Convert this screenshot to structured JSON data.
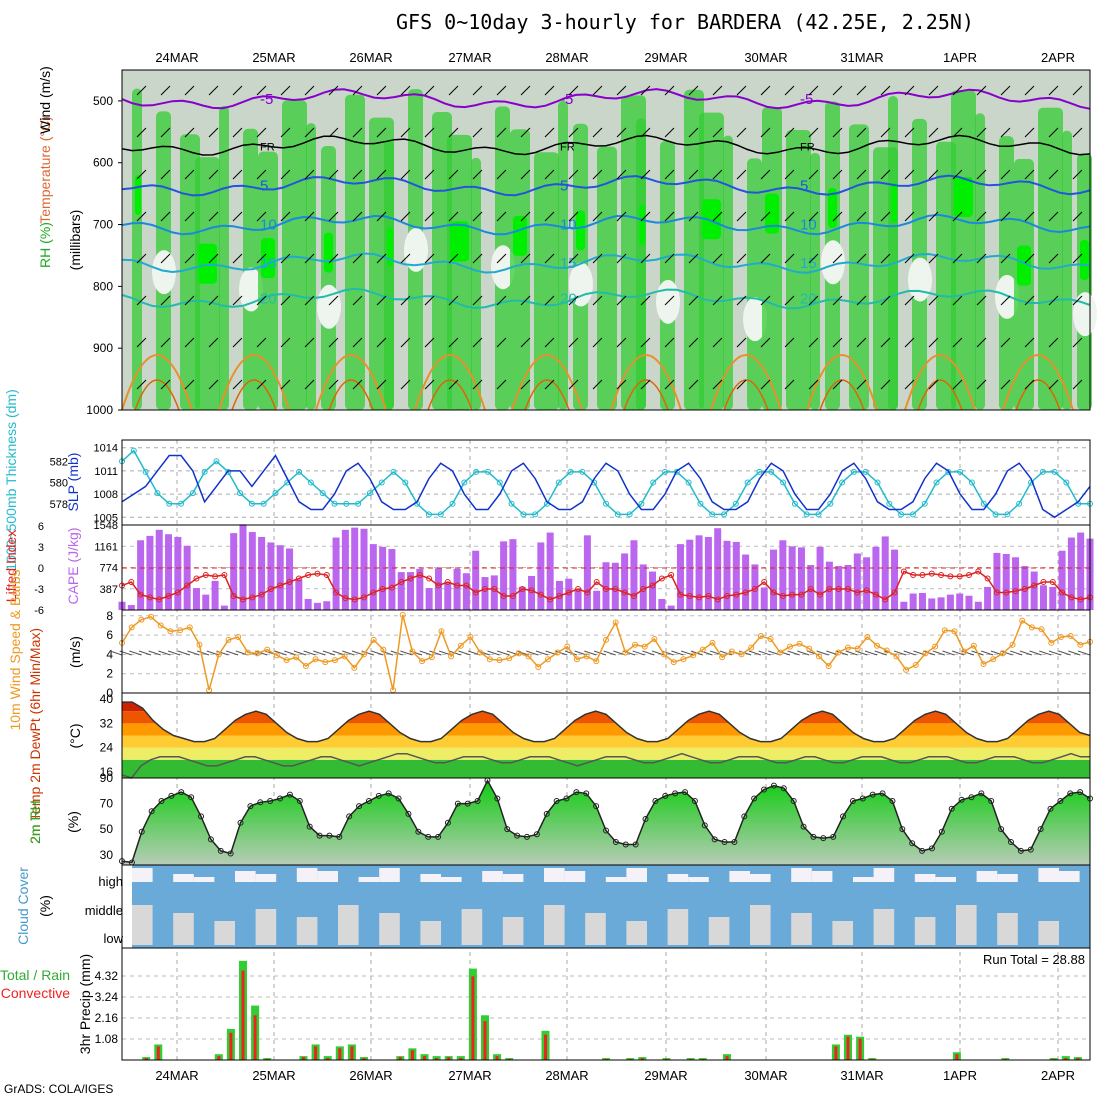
{
  "title": "GFS 0~10day 3-hourly for BARDERA (42.25E, 2.25N)",
  "credit": "GrADS: COLA/IGES",
  "dates": [
    "24MAR",
    "25MAR",
    "26MAR",
    "27MAR",
    "28MAR",
    "29MAR",
    "30MAR",
    "31MAR",
    "1APR",
    "2APR"
  ],
  "panel_labels": {
    "upper_rh": "RH (%)",
    "upper_temp": "Temperature (°C)",
    "upper_wind": "Wind (m/s)",
    "upper_units": "(millibars)",
    "thickness": "1000~500mb Thickness (dm)",
    "slp": "SLP (mb)",
    "lifted": "Lifted Index",
    "cape": "CAPE (J/kg)",
    "wind10": "10m Wind Speed & Barbs",
    "wind10_units": "(m/s)",
    "temp2m": "2m Temp 2m DewPt (6hr Min/Max)",
    "temp2m_units": "(°C)",
    "rh2m": "2m RH",
    "rh2m_units": "(%)",
    "cloud": "Cloud Cover",
    "cloud_units": "(%)",
    "precip_total": "Total / Rain",
    "precip_conv": "Convective",
    "precip": "3hr Precip (mm)",
    "run_total": "Run Total = 28.88"
  },
  "colors": {
    "rh_green": "#33cc33",
    "rh_bright": "#00ee00",
    "temp_purple": "#8800cc",
    "temp_blue": "#2255dd",
    "slp_line": "#1133cc",
    "thick_line": "#22bbcc",
    "cape_bar": "#bb66ee",
    "lifted_line": "#dd2222",
    "wind_line": "#ee9922",
    "cloud_blue": "#6aaad8",
    "precip_green": "#33cc33",
    "precip_red": "#ee2222"
  },
  "chart_data": [
    {
      "type": "heatmap",
      "panel": "upper-air",
      "ylabel": "millibars",
      "yticks": [
        500,
        600,
        700,
        800,
        900,
        1000
      ],
      "ylim": [
        450,
        1000
      ],
      "isotherm_labels": [
        "-5",
        "FR",
        "5",
        "10",
        "15",
        "20"
      ],
      "isotherm_levels_mb": [
        {
          "label": "-5",
          "mb": 497
        },
        {
          "label": "FR",
          "mb": 572
        },
        {
          "label": "5",
          "mb": 637
        },
        {
          "label": "10",
          "mb": 700
        },
        {
          "label": "15",
          "mb": 762
        },
        {
          "label": "20",
          "mb": 820
        }
      ]
    },
    {
      "type": "line",
      "panel": "slp-thickness",
      "series": [
        {
          "name": "SLP (mb)",
          "axis": "right-label",
          "yticks": [
            1005,
            1008,
            1011,
            1014
          ],
          "values": [
            1007,
            1008,
            1009,
            1011,
            1013,
            1013,
            1011,
            1007,
            1009,
            1011,
            1011,
            1009,
            1011,
            1013,
            1010,
            1007,
            1006,
            1006,
            1008,
            1011,
            1012,
            1010,
            1007,
            1006,
            1006,
            1007,
            1010,
            1012,
            1011,
            1008,
            1006,
            1006,
            1008,
            1011,
            1012,
            1010,
            1007,
            1006,
            1006,
            1007,
            1010,
            1012,
            1011,
            1008,
            1006,
            1006,
            1008,
            1011,
            1012,
            1010,
            1007,
            1006,
            1006,
            1007,
            1010,
            1012,
            1011,
            1008,
            1006,
            1006,
            1008,
            1011,
            1012,
            1010,
            1007,
            1006,
            1006,
            1007,
            1010,
            1012,
            1011,
            1008,
            1006,
            1006,
            1008,
            1011,
            1012,
            1010,
            1006,
            1005,
            1006,
            1007,
            1009
          ]
        },
        {
          "name": "1000~500mb Thickness (dm)",
          "axis": "left",
          "yticks": [
            578,
            580,
            582
          ],
          "values": [
            582,
            583,
            581,
            579,
            578,
            578,
            579,
            581,
            582,
            581,
            579,
            578,
            578,
            579,
            580,
            581,
            580,
            579,
            578,
            578,
            578,
            579,
            580,
            581,
            580,
            578,
            577,
            577,
            578,
            580,
            581,
            581,
            580,
            578,
            577,
            577,
            578,
            580,
            581,
            581,
            580,
            578,
            577,
            577,
            578,
            580,
            581,
            581,
            580,
            578,
            577,
            577,
            578,
            580,
            581,
            581,
            580,
            578,
            577,
            577,
            578,
            580,
            581,
            581,
            580,
            578,
            577,
            577,
            578,
            580,
            581,
            581,
            580,
            578,
            577,
            577,
            578,
            580,
            581,
            581,
            580,
            578,
            578
          ]
        }
      ]
    },
    {
      "type": "bar",
      "panel": "cape-lifted",
      "cape_yticks": [
        387,
        774,
        1161,
        1548
      ],
      "lifted_yticks": [
        -6,
        -3,
        0,
        3,
        6
      ],
      "cape": [
        150,
        90,
        1270,
        1350,
        1460,
        1380,
        1330,
        1170,
        400,
        280,
        530,
        80,
        1400,
        1560,
        1420,
        1330,
        1230,
        1180,
        1120,
        560,
        200,
        130,
        160,
        1320,
        1460,
        1500,
        1480,
        1200,
        1150,
        1110,
        690,
        690,
        750,
        400,
        760,
        510,
        750,
        670,
        1080,
        600,
        630,
        1250,
        1290,
        420,
        620,
        1230,
        1410,
        530,
        570,
        390,
        1360,
        350,
        870,
        860,
        1030,
        1270,
        830,
        700,
        200,
        80,
        1200,
        1280,
        1360,
        1330,
        1490,
        1260,
        1240,
        1010,
        830,
        410,
        1100,
        1270,
        1160,
        1140,
        820,
        1150,
        880,
        800,
        820,
        1030,
        960,
        1150,
        1340,
        1100,
        150,
        300,
        310,
        210,
        230,
        280,
        300,
        260,
        150,
        420,
        1040,
        1020,
        960,
        800,
        700,
        450,
        420,
        1080,
        1320,
        1410,
        1300
      ],
      "lifted": [
        -2.5,
        -2.0,
        -3.8,
        -4.2,
        -4.5,
        -4.0,
        -3.5,
        -2.5,
        -1.5,
        -1.0,
        -1.2,
        -1.0,
        -4.0,
        -4.5,
        -4.2,
        -3.8,
        -3.0,
        -2.5,
        -2.0,
        -1.5,
        -1.0,
        -0.8,
        -1.0,
        -3.5,
        -4.3,
        -4.5,
        -4.2,
        -3.5,
        -3.0,
        -2.8,
        -2.0,
        -1.5,
        -1.0,
        -1.5,
        -2.5,
        -2.0,
        -2.5,
        -2.5,
        -3.5,
        -3.0,
        -3.0,
        -4.0,
        -4.0,
        -3.0,
        -3.2,
        -3.8,
        -4.5,
        -4.0,
        -3.5,
        -3.0,
        -3.5,
        -2.0,
        -3.0,
        -3.0,
        -3.5,
        -4.0,
        -3.0,
        -2.5,
        -1.5,
        -1.0,
        -3.8,
        -4.0,
        -4.2,
        -4.0,
        -4.5,
        -4.0,
        -3.8,
        -3.5,
        -3.0,
        -2.0,
        -3.5,
        -4.0,
        -3.8,
        -3.8,
        -3.0,
        -3.8,
        -3.0,
        -3.0,
        -3.0,
        -3.5,
        -3.2,
        -3.8,
        -4.5,
        -3.5,
        -0.5,
        -1.0,
        -1.0,
        -0.8,
        -1.0,
        -1.2,
        -1.2,
        -1.0,
        -0.5,
        -1.5,
        -3.5,
        -3.5,
        -3.3,
        -3.0,
        -2.5,
        -2.0,
        -2.0,
        -3.5,
        -4.2,
        -4.5,
        -4.2
      ]
    },
    {
      "type": "line",
      "panel": "wind10m",
      "yticks": [
        0,
        2,
        4,
        6,
        8
      ],
      "ylim": [
        0,
        8
      ],
      "values": [
        5.2,
        6.8,
        7.6,
        7.9,
        7.0,
        6.4,
        6.5,
        6.8,
        5.0,
        0.3,
        4.0,
        5.5,
        5.8,
        4.2,
        4.1,
        4.5,
        3.9,
        3.4,
        3.7,
        2.8,
        3.5,
        3.2,
        3.4,
        3.8,
        2.6,
        4.0,
        5.5,
        4.5,
        0.3,
        8.1,
        4.3,
        3.3,
        3.7,
        6.4,
        3.8,
        4.9,
        5.8,
        4.2,
        3.5,
        3.4,
        3.6,
        4.1,
        3.8,
        2.7,
        3.5,
        4.2,
        4.8,
        3.5,
        3.8,
        3.3,
        5.5,
        7.3,
        4.2,
        5.0,
        4.8,
        5.6,
        4.0,
        3.2,
        3.5,
        3.9,
        4.5,
        5.2,
        3.7,
        4.3,
        4.0,
        4.7,
        5.9,
        5.6,
        4.2,
        4.8,
        5.1,
        4.6,
        3.8,
        2.8,
        4.2,
        4.7,
        4.6,
        5.8,
        4.9,
        4.4,
        3.8,
        2.4,
        2.9,
        4.1,
        4.8,
        6.5,
        6.4,
        4.3,
        4.9,
        3.0,
        3.5,
        4.1,
        5.0,
        7.5,
        6.8,
        6.6,
        5.2,
        5.8,
        5.9,
        5.0,
        5.3
      ]
    },
    {
      "type": "area",
      "panel": "temp2m",
      "yticks": [
        16,
        24,
        32,
        40
      ],
      "ylim": [
        14,
        42
      ],
      "temp": [
        39,
        39,
        37,
        33,
        30,
        28,
        27,
        26,
        26,
        27,
        30,
        33,
        35,
        36,
        35,
        32,
        29,
        27,
        26,
        26,
        27,
        30,
        33,
        35,
        36,
        35,
        32,
        29,
        27,
        26,
        26,
        27,
        30,
        33,
        35,
        36,
        35,
        32,
        29,
        27,
        26,
        26,
        27,
        30,
        33,
        35,
        36,
        35,
        32,
        29,
        27,
        26,
        26,
        27,
        30,
        33,
        35,
        36,
        35,
        32,
        29,
        27,
        26,
        26,
        27,
        30,
        33,
        35,
        36,
        35,
        32,
        29,
        27,
        26,
        26,
        27,
        30,
        33,
        35,
        36,
        35,
        32,
        29,
        27,
        26,
        26,
        27,
        30,
        33,
        35,
        36,
        35,
        32,
        29,
        28
      ],
      "dewpoint": [
        15,
        14,
        18,
        20,
        21,
        21,
        21,
        20,
        19,
        18,
        18,
        19,
        20,
        21,
        21,
        20,
        19,
        18,
        18,
        19,
        20,
        21,
        21,
        20,
        19,
        18,
        19,
        20,
        21,
        22,
        22,
        21,
        20,
        19,
        19,
        20,
        21,
        21,
        21,
        20,
        19,
        19,
        20,
        21,
        21,
        21,
        20,
        19,
        18,
        19,
        20,
        21,
        21,
        21,
        20,
        19,
        19,
        20,
        21,
        22,
        21,
        20,
        19,
        19,
        20,
        21,
        21,
        21,
        20,
        19,
        19,
        20,
        21,
        21,
        20,
        19,
        19,
        20,
        21,
        21,
        21,
        20,
        19,
        19,
        20,
        21,
        21,
        21,
        20,
        19,
        19,
        20,
        21,
        21,
        21,
        20,
        19,
        19,
        20,
        21,
        22,
        21,
        21
      ]
    },
    {
      "type": "area",
      "panel": "rh2m",
      "yticks": [
        30,
        50,
        70,
        90
      ],
      "ylim": [
        22,
        90
      ],
      "values": [
        25,
        24,
        48,
        64,
        72,
        76,
        79,
        75,
        60,
        42,
        33,
        31,
        55,
        68,
        71,
        72,
        74,
        77,
        72,
        52,
        45,
        45,
        44,
        60,
        68,
        72,
        76,
        78,
        74,
        62,
        48,
        44,
        44,
        55,
        70,
        70,
        72,
        88,
        74,
        50,
        45,
        44,
        46,
        62,
        72,
        74,
        79,
        78,
        68,
        49,
        40,
        38,
        38,
        58,
        72,
        76,
        78,
        79,
        72,
        53,
        42,
        40,
        40,
        60,
        74,
        81,
        84,
        82,
        72,
        52,
        44,
        43,
        44,
        60,
        72,
        74,
        77,
        78,
        72,
        50,
        39,
        33,
        35,
        48,
        66,
        73,
        75,
        78,
        72,
        50,
        40,
        33,
        34,
        50,
        66,
        72,
        78,
        79,
        74
      ]
    },
    {
      "type": "area",
      "panel": "cloud-cover",
      "layers": [
        "high",
        "middle",
        "low"
      ]
    },
    {
      "type": "bar",
      "panel": "precip",
      "yticks": [
        1.08,
        2.16,
        3.24,
        4.32
      ],
      "ylim": [
        0,
        5.4
      ],
      "run_total": 28.88,
      "bars": [
        {
          "t": 2,
          "total": 0.15,
          "conv": 0.1
        },
        {
          "t": 3,
          "total": 0.8,
          "conv": 0.7
        },
        {
          "t": 8,
          "total": 0.3,
          "conv": 0.2
        },
        {
          "t": 9,
          "total": 1.6,
          "conv": 1.4
        },
        {
          "t": 10,
          "total": 5.1,
          "conv": 4.6
        },
        {
          "t": 11,
          "total": 2.8,
          "conv": 2.3
        },
        {
          "t": 12,
          "total": 0.1,
          "conv": 0.05
        },
        {
          "t": 15,
          "total": 0.2,
          "conv": 0.15
        },
        {
          "t": 16,
          "total": 0.8,
          "conv": 0.7
        },
        {
          "t": 17,
          "total": 0.2,
          "conv": 0.1
        },
        {
          "t": 18,
          "total": 0.7,
          "conv": 0.6
        },
        {
          "t": 19,
          "total": 0.8,
          "conv": 0.7
        },
        {
          "t": 20,
          "total": 0.15,
          "conv": 0.1
        },
        {
          "t": 23,
          "total": 0.2,
          "conv": 0.15
        },
        {
          "t": 24,
          "total": 0.6,
          "conv": 0.5
        },
        {
          "t": 25,
          "total": 0.3,
          "conv": 0.2
        },
        {
          "t": 26,
          "total": 0.2,
          "conv": 0.1
        },
        {
          "t": 27,
          "total": 0.2,
          "conv": 0.15
        },
        {
          "t": 28,
          "total": 0.2,
          "conv": 0.1
        },
        {
          "t": 29,
          "total": 4.7,
          "conv": 4.3
        },
        {
          "t": 30,
          "total": 2.3,
          "conv": 2.0
        },
        {
          "t": 31,
          "total": 0.3,
          "conv": 0.2
        },
        {
          "t": 32,
          "total": 0.1,
          "conv": 0.05
        },
        {
          "t": 35,
          "total": 1.5,
          "conv": 1.3
        },
        {
          "t": 40,
          "total": 0.1,
          "conv": 0.05
        },
        {
          "t": 42,
          "total": 0.1,
          "conv": 0.05
        },
        {
          "t": 43,
          "total": 0.15,
          "conv": 0.1
        },
        {
          "t": 45,
          "total": 0.1,
          "conv": 0.05
        },
        {
          "t": 47,
          "total": 0.1,
          "conv": 0.05
        },
        {
          "t": 48,
          "total": 0.1,
          "conv": 0.05
        },
        {
          "t": 50,
          "total": 0.3,
          "conv": 0.2
        },
        {
          "t": 59,
          "total": 0.8,
          "conv": 0.7
        },
        {
          "t": 60,
          "total": 1.3,
          "conv": 1.2
        },
        {
          "t": 61,
          "total": 1.2,
          "conv": 1.1
        },
        {
          "t": 62,
          "total": 0.1,
          "conv": 0.05
        },
        {
          "t": 69,
          "total": 0.4,
          "conv": 0.3
        },
        {
          "t": 73,
          "total": 0.1,
          "conv": 0.05
        },
        {
          "t": 77,
          "total": 0.1,
          "conv": 0.05
        },
        {
          "t": 78,
          "total": 0.2,
          "conv": 0.1
        },
        {
          "t": 79,
          "total": 0.15,
          "conv": 0.1
        }
      ]
    }
  ]
}
